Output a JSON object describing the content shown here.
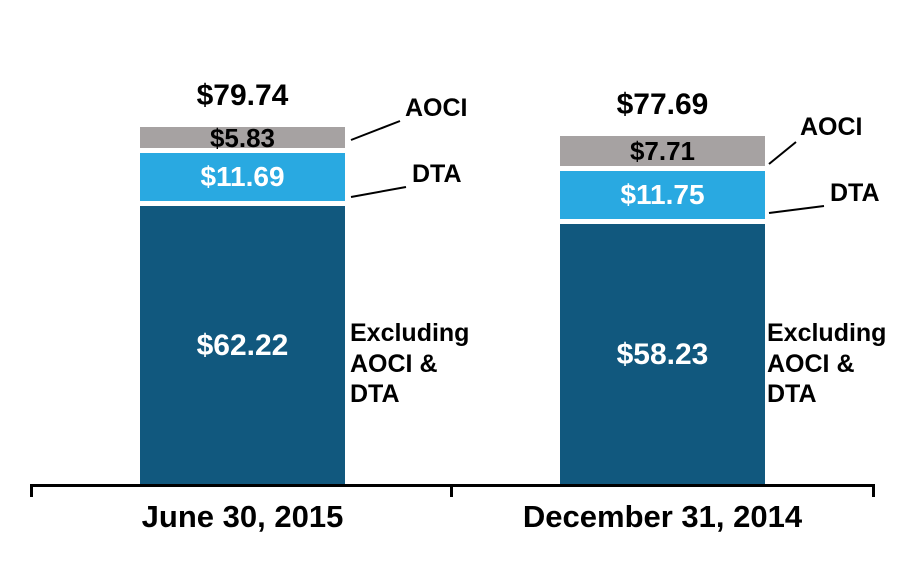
{
  "colors": {
    "segment_main": "#11587E",
    "segment_dta": "#29A9E1",
    "segment_aoci": "#A6A2A2",
    "axis": "#000000",
    "label_on_dark": "#FFFFFF",
    "label_on_light": "#000000"
  },
  "chart_data": {
    "type": "bar",
    "stacked": true,
    "categories": [
      "June 30, 2015",
      "December 31, 2014"
    ],
    "series": [
      {
        "name": "Excluding AOCI & DTA",
        "values": [
          62.22,
          58.23
        ],
        "color": "#11587E"
      },
      {
        "name": "DTA",
        "values": [
          11.69,
          11.75
        ],
        "color": "#29A9E1"
      },
      {
        "name": "AOCI",
        "values": [
          5.83,
          7.71
        ],
        "color": "#A6A2A2"
      }
    ],
    "totals": [
      79.74,
      77.69
    ],
    "value_prefix": "$",
    "grid": false,
    "legend_position": "none",
    "annotation_style": "leader-line-callouts"
  },
  "bars": [
    {
      "category": "June 30, 2015",
      "total_label": "$79.74",
      "aoci": {
        "label": "$5.83",
        "value": 5.83
      },
      "dta": {
        "label": "$11.69",
        "value": 11.69
      },
      "main": {
        "label": "$62.22",
        "value": 62.22
      },
      "callouts": {
        "aoci": "AOCI",
        "dta": "DTA",
        "excluding": "Excluding AOCI & DTA"
      }
    },
    {
      "category": "December 31, 2014",
      "total_label": "$77.69",
      "aoci": {
        "label": "$7.71",
        "value": 7.71
      },
      "dta": {
        "label": "$11.75",
        "value": 11.75
      },
      "main": {
        "label": "$58.23",
        "value": 58.23
      },
      "callouts": {
        "aoci": "AOCI",
        "dta": "DTA",
        "excluding": "Excluding AOCI & DTA"
      }
    }
  ]
}
